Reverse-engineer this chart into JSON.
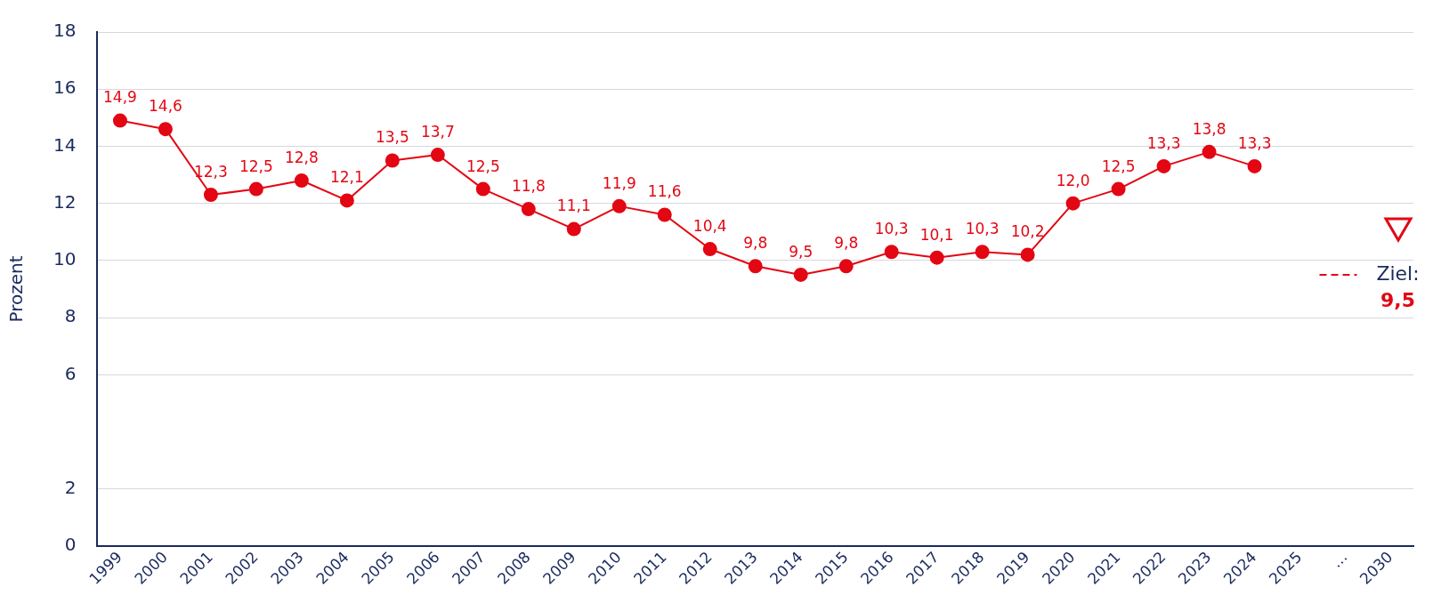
{
  "chart_data": {
    "type": "line",
    "ylabel": "Prozent",
    "categories": [
      "1999",
      "2000",
      "2001",
      "2002",
      "2003",
      "2004",
      "2005",
      "2006",
      "2007",
      "2008",
      "2009",
      "2010",
      "2011",
      "2012",
      "2013",
      "2014",
      "2015",
      "2016",
      "2017",
      "2018",
      "2019",
      "2020",
      "2021",
      "2022",
      "2023",
      "2024",
      "2025",
      "…",
      "2030"
    ],
    "series": [
      {
        "color": "#e30613",
        "values": [
          14.9,
          14.6,
          12.3,
          12.5,
          12.8,
          12.1,
          13.5,
          13.7,
          12.5,
          11.8,
          11.1,
          11.9,
          11.6,
          10.4,
          9.8,
          9.5,
          9.8,
          10.3,
          10.1,
          10.3,
          10.2,
          12.0,
          12.5,
          13.3,
          13.8,
          13.3,
          null,
          null,
          null
        ],
        "value_labels": [
          "14,9",
          "14,6",
          "12,3",
          "12,5",
          "12,8",
          "12,1",
          "13,5",
          "13,7",
          "12,5",
          "11,8",
          "11,1",
          "11,9",
          "11,6",
          "10,4",
          "9,8",
          "9,5",
          "9,8",
          "10,3",
          "10,1",
          "10,3",
          "10,2",
          "12,0",
          "12,5",
          "13,3",
          "13,8",
          "13,3",
          null,
          null,
          null
        ]
      }
    ],
    "ylim": [
      0,
      18
    ],
    "yticks": [
      0,
      2,
      6,
      8,
      10,
      12,
      14,
      16,
      18
    ],
    "grid": "y",
    "marker": "circle",
    "line_style": "solid",
    "legend": false,
    "ref_lines": [
      {
        "axis": "y",
        "value": 9.5,
        "label": "Ziel: 9,5",
        "color": "#e30613",
        "line_style": "dashed"
      }
    ]
  }
}
